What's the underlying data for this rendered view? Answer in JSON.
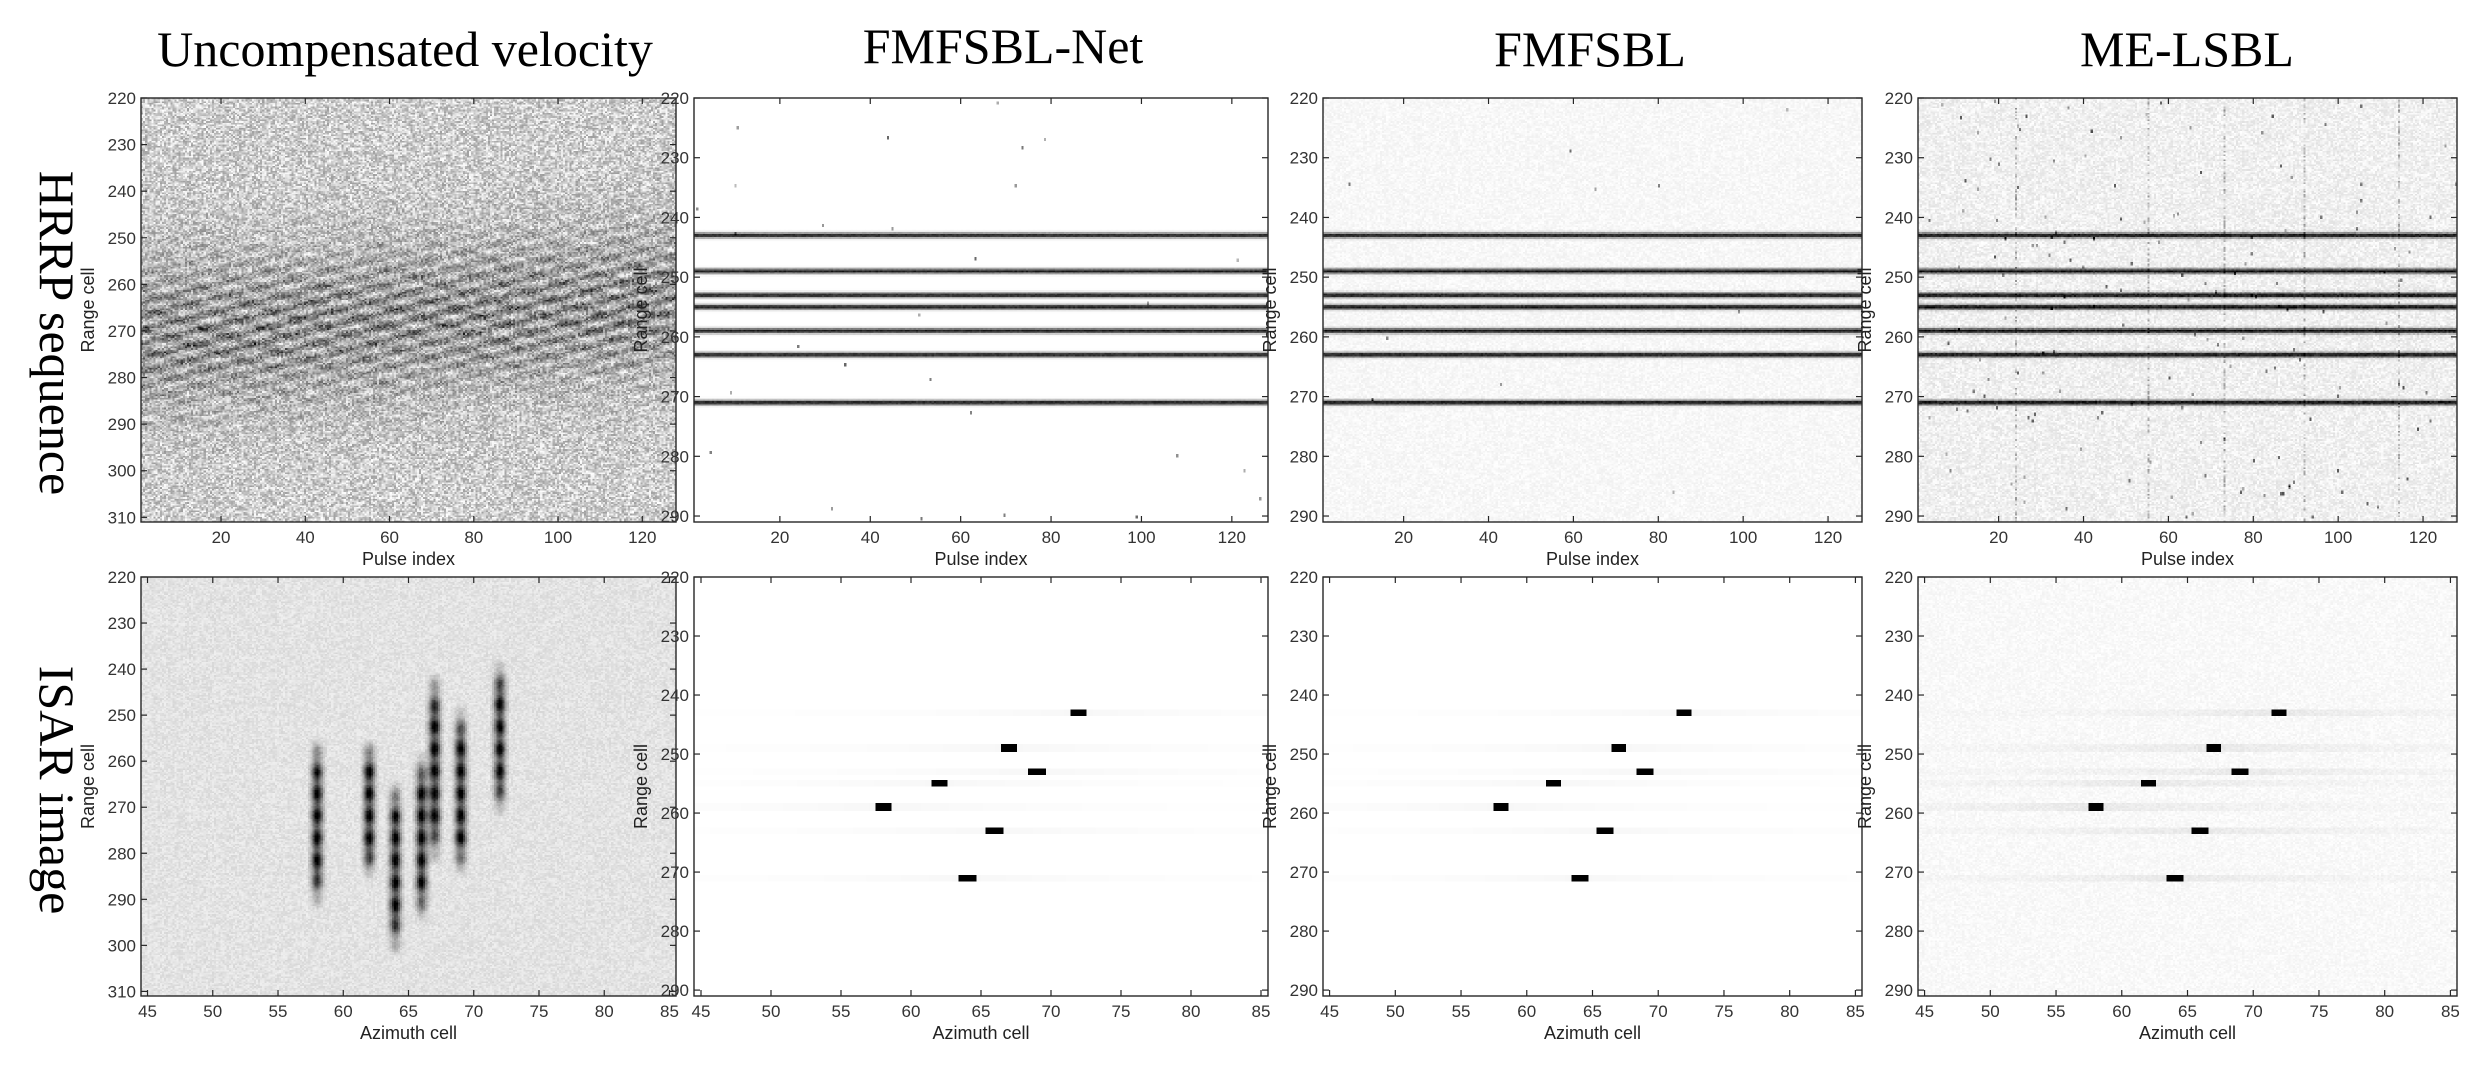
{
  "column_titles": [
    "Uncompensated velocity",
    "FMFSBL-Net",
    "FMFSBL",
    "ME-LSBL"
  ],
  "row_labels": [
    "HRRP sequence",
    "ISAR image"
  ],
  "colormap": {
    "low": "#ffffff",
    "high": "#000000"
  },
  "chart_data": [
    {
      "type": "heatmap",
      "row": "HRRP sequence",
      "column": "Uncompensated velocity",
      "xlabel": "Pulse index",
      "ylabel": "Range cell",
      "xlim": [
        1,
        128
      ],
      "ylim": [
        220,
        311
      ],
      "x_ticks": [
        20,
        40,
        60,
        80,
        100,
        120
      ],
      "y_ticks": [
        220,
        230,
        240,
        250,
        260,
        270,
        280,
        290,
        300,
        310
      ],
      "pattern": "noisy-slanted-stripes",
      "noise_level": 0.45,
      "band_range": [
        250,
        285
      ]
    },
    {
      "type": "heatmap",
      "row": "HRRP sequence",
      "column": "FMFSBL-Net",
      "xlabel": "Pulse index",
      "ylabel": "Range cell",
      "xlim": [
        1,
        128
      ],
      "ylim": [
        220,
        291
      ],
      "x_ticks": [
        20,
        40,
        60,
        80,
        100,
        120
      ],
      "y_ticks": [
        220,
        230,
        240,
        250,
        260,
        270,
        280,
        290
      ],
      "pattern": "horizontal-lines",
      "lines": [
        243,
        249,
        253,
        255,
        259,
        263,
        271
      ],
      "noise_level": 0.0,
      "speckle_count": 28
    },
    {
      "type": "heatmap",
      "row": "HRRP sequence",
      "column": "FMFSBL",
      "xlabel": "Pulse index",
      "ylabel": "Range cell",
      "xlim": [
        1,
        128
      ],
      "ylim": [
        220,
        291
      ],
      "x_ticks": [
        20,
        40,
        60,
        80,
        100,
        120
      ],
      "y_ticks": [
        220,
        230,
        240,
        250,
        260,
        270,
        280,
        290
      ],
      "pattern": "horizontal-lines",
      "lines": [
        243,
        249,
        253,
        255,
        259,
        263,
        271
      ],
      "noise_level": 0.06,
      "speckle_count": 10
    },
    {
      "type": "heatmap",
      "row": "HRRP sequence",
      "column": "ME-LSBL",
      "xlabel": "Pulse index",
      "ylabel": "Range cell",
      "xlim": [
        1,
        128
      ],
      "ylim": [
        220,
        291
      ],
      "x_ticks": [
        20,
        40,
        60,
        80,
        100,
        120
      ],
      "y_ticks": [
        220,
        230,
        240,
        250,
        260,
        270,
        280,
        290
      ],
      "pattern": "horizontal-lines",
      "lines": [
        243,
        249,
        253,
        255,
        259,
        263,
        271
      ],
      "noise_level": 0.12,
      "speckle_count": 160,
      "vertical_streaks": [
        24,
        55,
        73,
        92,
        114
      ]
    },
    {
      "type": "heatmap",
      "row": "ISAR image",
      "column": "Uncompensated velocity",
      "xlabel": "Azimuth cell",
      "ylabel": "Range cell",
      "xlim": [
        44.5,
        85.5
      ],
      "ylim": [
        220,
        311
      ],
      "x_ticks": [
        45,
        50,
        55,
        60,
        65,
        70,
        75,
        80,
        85
      ],
      "y_ticks": [
        220,
        230,
        240,
        250,
        260,
        270,
        280,
        290,
        300,
        310
      ],
      "pattern": "vertical-smears",
      "noise_level": 0.1,
      "smears": [
        {
          "x": 58,
          "y0": 257,
          "y1": 290
        },
        {
          "x": 62,
          "y0": 257,
          "y1": 284
        },
        {
          "x": 64,
          "y0": 266,
          "y1": 300
        },
        {
          "x": 66,
          "y0": 260,
          "y1": 293
        },
        {
          "x": 67,
          "y0": 243,
          "y1": 280
        },
        {
          "x": 69,
          "y0": 250,
          "y1": 283
        },
        {
          "x": 72,
          "y0": 240,
          "y1": 270
        }
      ]
    },
    {
      "type": "heatmap",
      "row": "ISAR image",
      "column": "FMFSBL-Net",
      "xlabel": "Azimuth cell",
      "ylabel": "Range cell",
      "xlim": [
        44.5,
        85.5
      ],
      "ylim": [
        220,
        291
      ],
      "x_ticks": [
        45,
        50,
        55,
        60,
        65,
        70,
        75,
        80,
        85
      ],
      "y_ticks": [
        220,
        230,
        240,
        250,
        260,
        270,
        280,
        290
      ],
      "pattern": "point-scatterers",
      "noise_level": 0.0,
      "sidelobe": 0.08,
      "points": [
        {
          "x": 72,
          "y": 243
        },
        {
          "x": 67,
          "y": 249
        },
        {
          "x": 69,
          "y": 253
        },
        {
          "x": 62,
          "y": 255
        },
        {
          "x": 58,
          "y": 259
        },
        {
          "x": 66,
          "y": 263
        },
        {
          "x": 64,
          "y": 271
        }
      ]
    },
    {
      "type": "heatmap",
      "row": "ISAR image",
      "column": "FMFSBL",
      "xlabel": "Azimuth cell",
      "ylabel": "Range cell",
      "xlim": [
        44.5,
        85.5
      ],
      "ylim": [
        220,
        291
      ],
      "x_ticks": [
        45,
        50,
        55,
        60,
        65,
        70,
        75,
        80,
        85
      ],
      "y_ticks": [
        220,
        230,
        240,
        250,
        260,
        270,
        280,
        290
      ],
      "pattern": "point-scatterers",
      "noise_level": 0.0,
      "sidelobe": 0.08,
      "points": [
        {
          "x": 72,
          "y": 243
        },
        {
          "x": 67,
          "y": 249
        },
        {
          "x": 69,
          "y": 253
        },
        {
          "x": 62,
          "y": 255
        },
        {
          "x": 58,
          "y": 259
        },
        {
          "x": 66,
          "y": 263
        },
        {
          "x": 64,
          "y": 271
        }
      ]
    },
    {
      "type": "heatmap",
      "row": "ISAR image",
      "column": "ME-LSBL",
      "xlabel": "Azimuth cell",
      "ylabel": "Range cell",
      "xlim": [
        44.5,
        85.5
      ],
      "ylim": [
        220,
        291
      ],
      "x_ticks": [
        45,
        50,
        55,
        60,
        65,
        70,
        75,
        80,
        85
      ],
      "y_ticks": [
        220,
        230,
        240,
        250,
        260,
        270,
        280,
        290
      ],
      "pattern": "point-scatterers",
      "noise_level": 0.05,
      "sidelobe": 0.16,
      "points": [
        {
          "x": 72,
          "y": 243
        },
        {
          "x": 67,
          "y": 249
        },
        {
          "x": 69,
          "y": 253
        },
        {
          "x": 62,
          "y": 255
        },
        {
          "x": 58,
          "y": 259
        },
        {
          "x": 66,
          "y": 263
        },
        {
          "x": 64,
          "y": 271
        }
      ]
    }
  ]
}
